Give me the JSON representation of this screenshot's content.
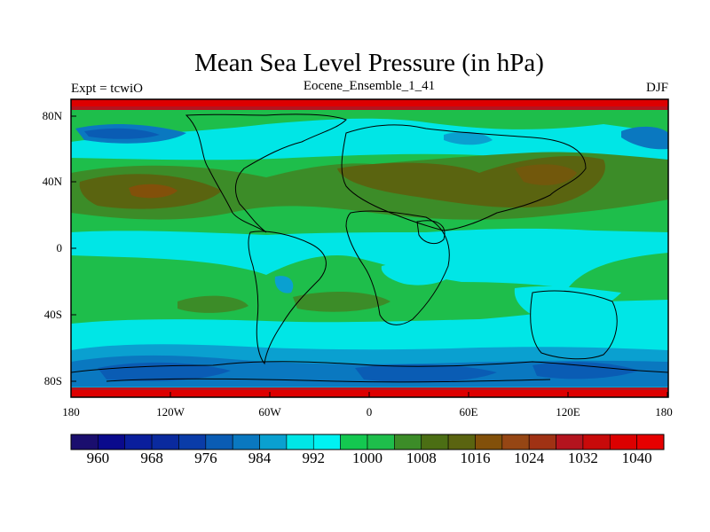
{
  "header": {
    "title": "Mean Sea Level Pressure (in hPa)",
    "left_label": "Expt = tcwiO",
    "center_label": "Eocene_Ensemble_1_41",
    "right_label": "DJF"
  },
  "map": {
    "projection": "cylindrical-equidistant",
    "lat_range": [
      -90,
      90
    ],
    "lon_range": [
      -180,
      180
    ],
    "lat_labels": [
      "80N",
      "40N",
      "0",
      "40S",
      "80S"
    ],
    "lon_labels": [
      "180",
      "120W",
      "60W",
      "0",
      "60E",
      "120E",
      "180"
    ]
  },
  "colorbar": {
    "min": 956,
    "max": 1044,
    "interval": 4,
    "labels": [
      "960",
      "968",
      "976",
      "984",
      "992",
      "1000",
      "1008",
      "1016",
      "1024",
      "1032",
      "1040"
    ],
    "colors": [
      "#1a0e6e",
      "#0a0a8c",
      "#0a1e9c",
      "#0a2a9e",
      "#0a3ca8",
      "#0a5cb4",
      "#0a78c0",
      "#0aa0d0",
      "#00e6e6",
      "#00f2f2",
      "#14c850",
      "#1ebe4b",
      "#3c8c28",
      "#4b6e14",
      "#5a6410",
      "#82500a",
      "#964614",
      "#a03214",
      "#b4141e",
      "#c80a0a",
      "#dc0000",
      "#e60000"
    ]
  },
  "fields": {
    "land_color": "#dd0000",
    "coastline_color": "#000000"
  }
}
